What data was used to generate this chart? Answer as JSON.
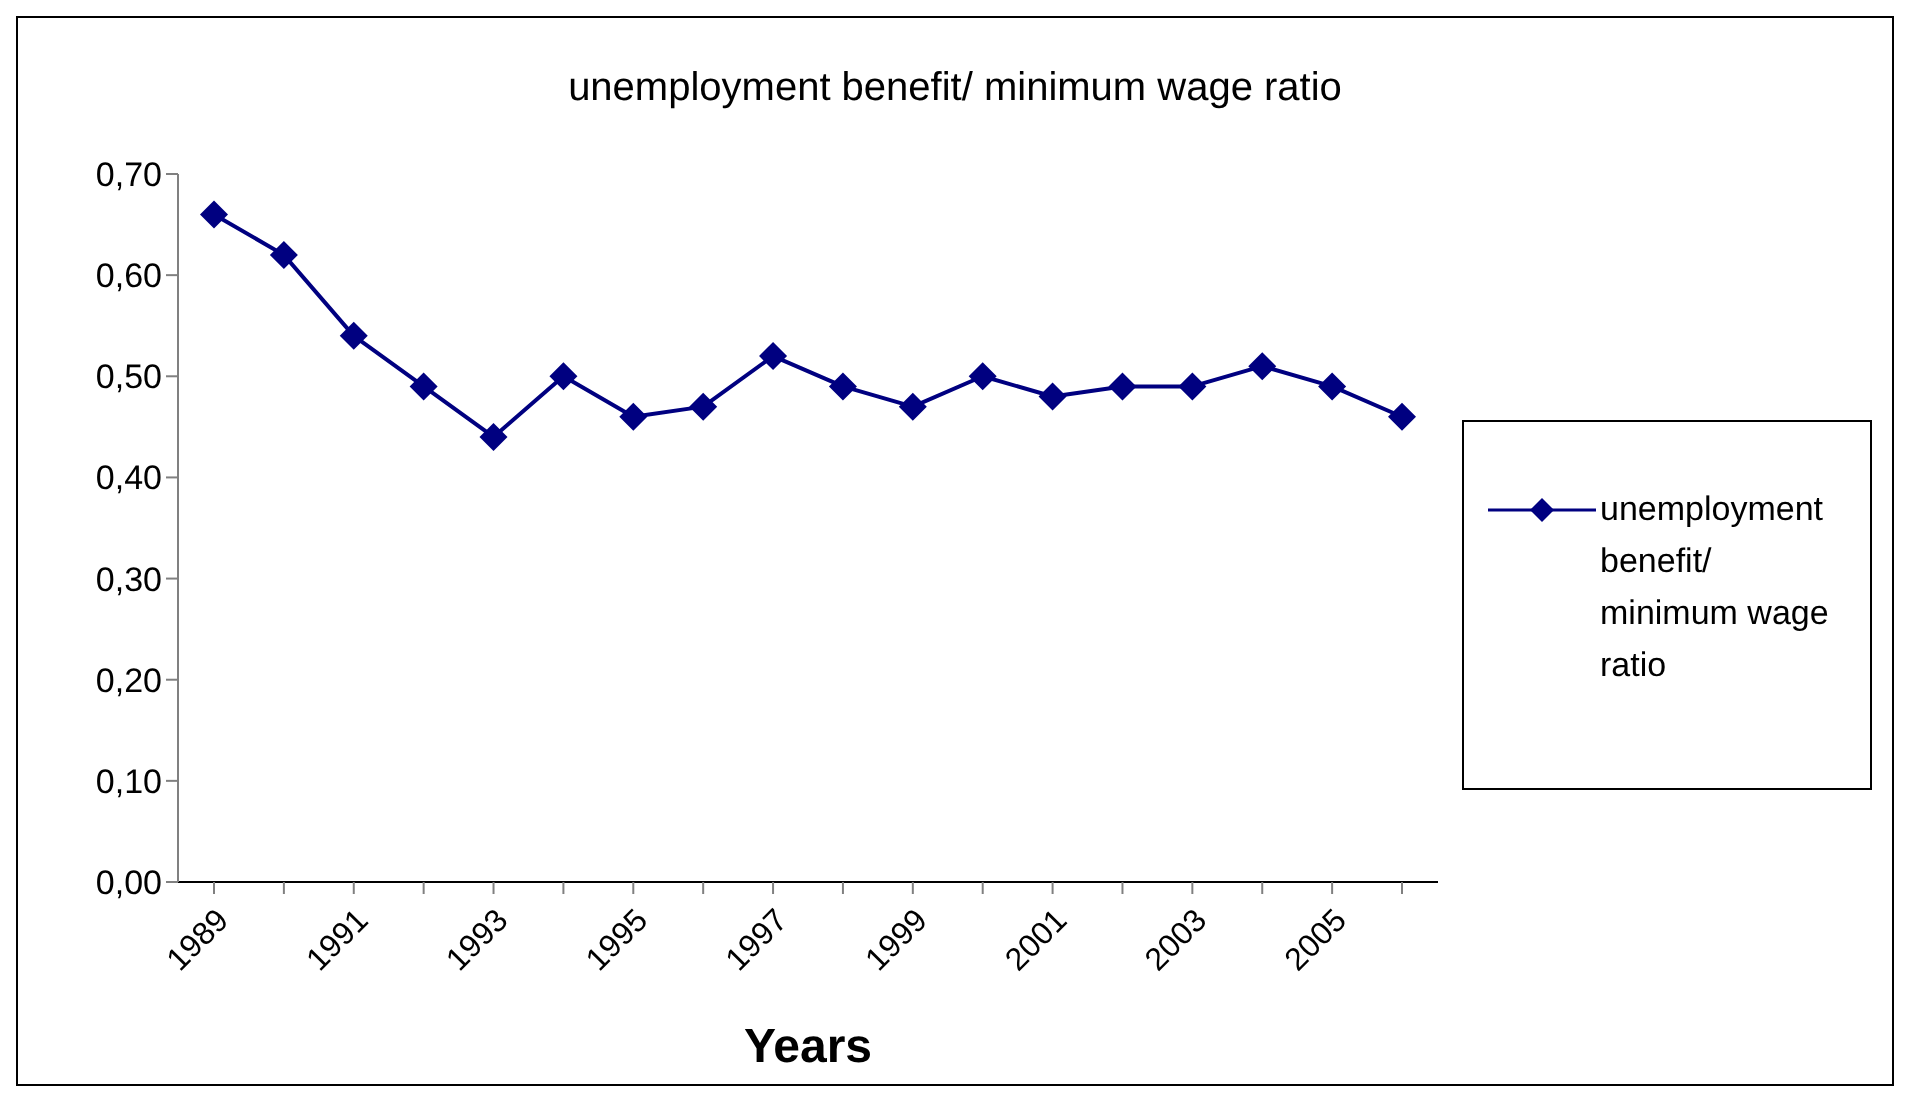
{
  "chart_data": {
    "type": "line",
    "title": "unemployment benefit/ minimum wage ratio",
    "xlabel": "Years",
    "categories": [
      "1989",
      null,
      "1991",
      null,
      "1993",
      null,
      "1995",
      null,
      "1997",
      null,
      "1999",
      null,
      "2001",
      null,
      "2003",
      null,
      "2005",
      null
    ],
    "series": [
      {
        "name": "unemployment benefit/ minimum wage ratio",
        "color": "#000080",
        "values": [
          0.66,
          0.62,
          0.54,
          0.49,
          0.44,
          0.5,
          0.46,
          0.47,
          0.52,
          0.49,
          0.47,
          0.5,
          0.48,
          0.49,
          0.49,
          0.51,
          0.49,
          0.46
        ]
      }
    ],
    "ylim": [
      0,
      0.7
    ],
    "yticks": [
      {
        "value": 0,
        "label": "0,00"
      },
      {
        "value": 0.1,
        "label": "0,10"
      },
      {
        "value": 0.2,
        "label": "0,20"
      },
      {
        "value": 0.3,
        "label": "0,30"
      },
      {
        "value": 0.4,
        "label": "0,40"
      },
      {
        "value": 0.5,
        "label": "0,50"
      },
      {
        "value": 0.6,
        "label": "0,60"
      },
      {
        "value": 0.7,
        "label": "0,70"
      }
    ],
    "grid": false,
    "legend": "right",
    "marker": "diamond",
    "line_style": "solid"
  }
}
